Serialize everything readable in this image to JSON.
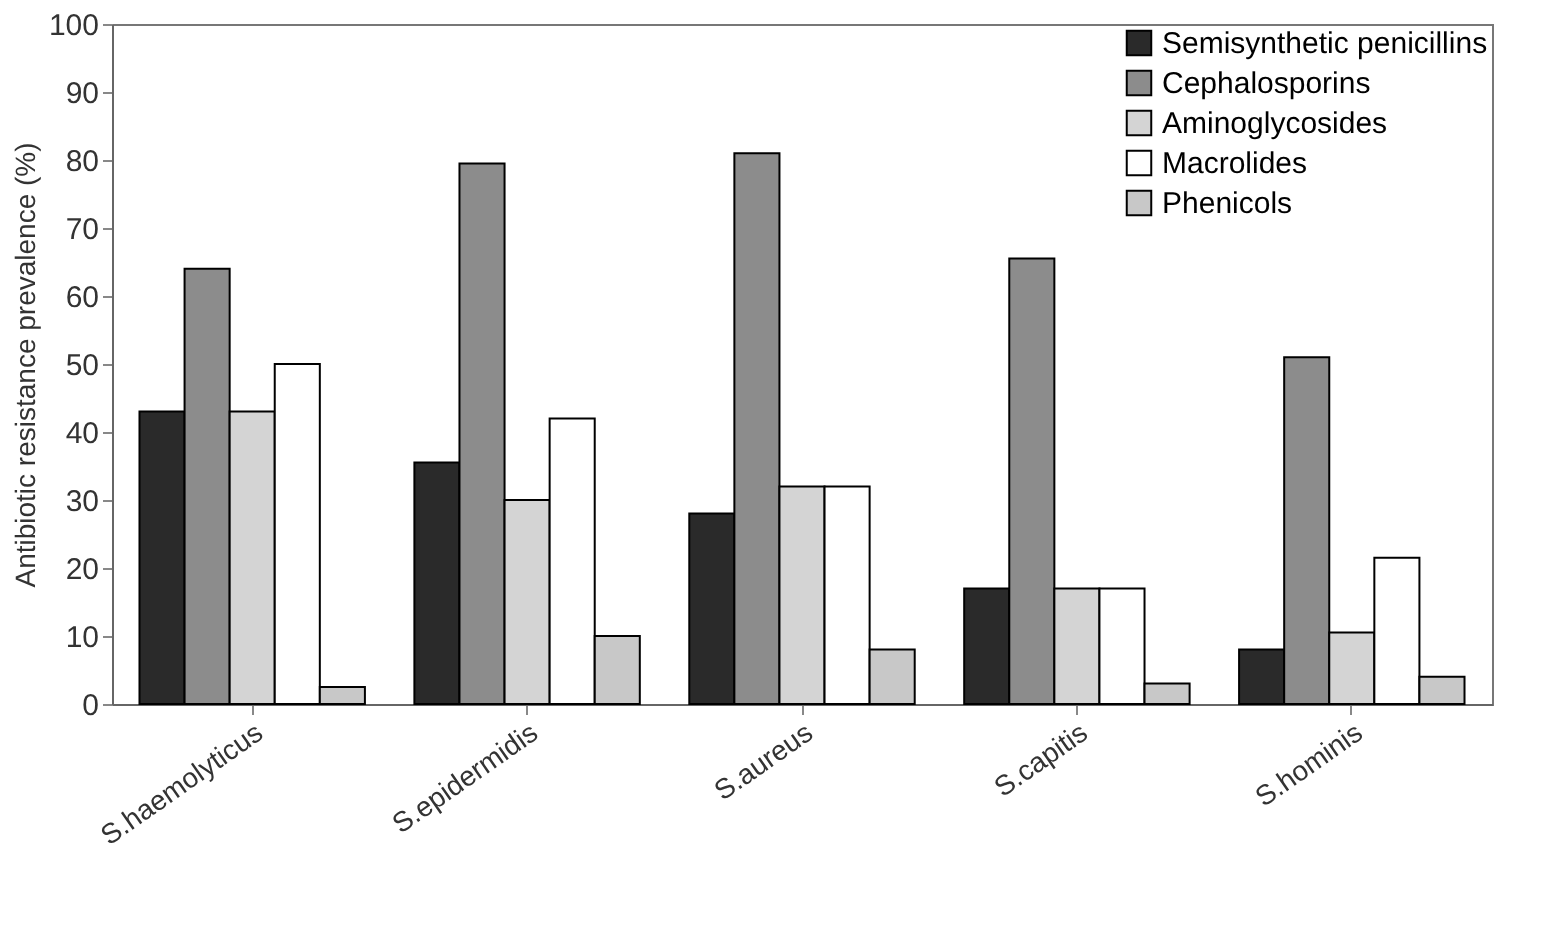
{
  "chart_data": {
    "type": "bar",
    "ylabel": "Antibiotic resistance prevalence (%)",
    "categories": [
      "S.haemolyticus",
      "S.epidermidis",
      "S.aureus",
      "S.capitis",
      "S.hominis"
    ],
    "series": [
      {
        "name": "Semisynthetic penicillins",
        "color": "#2a2a2a",
        "values": [
          43,
          35.5,
          28,
          17,
          8
        ]
      },
      {
        "name": "Cephalosporins",
        "color": "#8c8c8c",
        "values": [
          64,
          79.5,
          81,
          65.5,
          51
        ]
      },
      {
        "name": "Aminoglycosides",
        "color": "#d4d4d4",
        "values": [
          43,
          30,
          32,
          17,
          10.5
        ]
      },
      {
        "name": "Macrolides",
        "color": "#ffffff",
        "values": [
          50,
          42,
          32,
          17,
          21.5
        ]
      },
      {
        "name": "Phenicols",
        "color": "#c8c8c8",
        "values": [
          2.5,
          10,
          8,
          3,
          4
        ]
      }
    ],
    "ylim": [
      0,
      100
    ],
    "yticks": [
      0,
      10,
      20,
      30,
      40,
      50,
      60,
      70,
      80,
      90,
      100
    ],
    "grid": false,
    "legend": "top right"
  }
}
